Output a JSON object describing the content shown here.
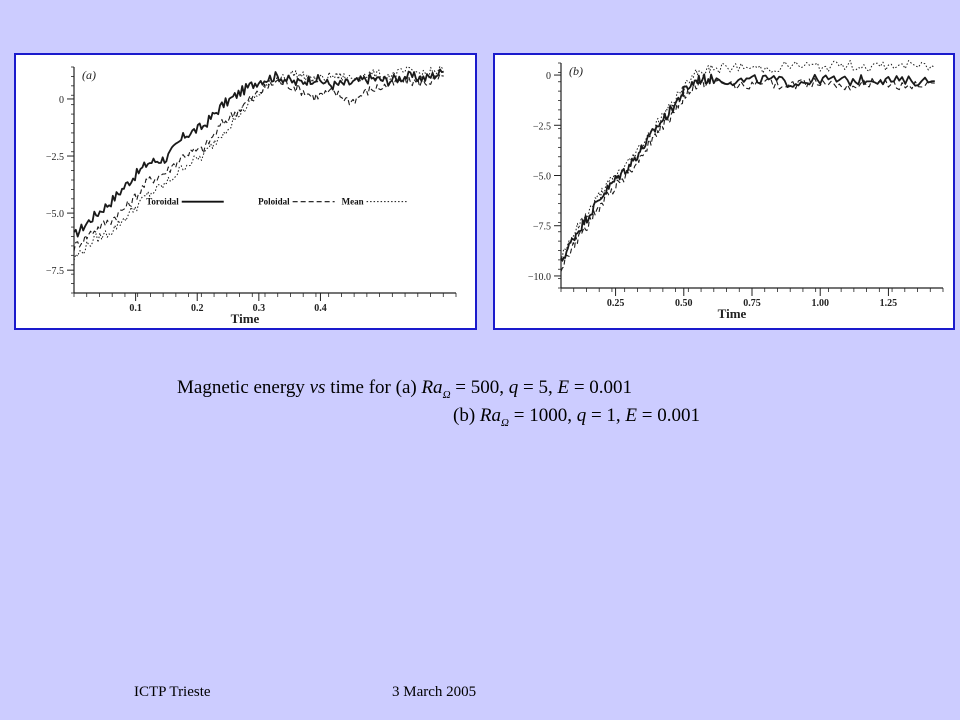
{
  "caption": {
    "line1_prefix": "Magnetic energy ",
    "line1_vs": "vs",
    "line1_mid": " time for (a) ",
    "ra_symbol": "Ra",
    "ra_sub": "Ω",
    "line1_vals": " = 500,   ",
    "q": "q",
    "line1_q": " = 5, ",
    "E": "E",
    "line1_e": " = 0.001",
    "line2_prefix": "(b) ",
    "line2_vals": " = 1000, ",
    "line2_q": " = 1, ",
    "line2_e": " = 0.001"
  },
  "footer": {
    "left": "ICTP Trieste",
    "right": "3 March 2005"
  },
  "chart_data": [
    {
      "type": "line",
      "panel_label": "(a)",
      "xlabel": "Time",
      "ylabel": "",
      "xlim": [
        0,
        0.62
      ],
      "ylim": [
        -8.5,
        1.4
      ],
      "xticks": [
        0.1,
        0.2,
        0.3,
        0.4
      ],
      "xtick_labels": [
        "0.1",
        "0.2",
        "0.3",
        "0.4"
      ],
      "yticks": [
        0,
        -2.5,
        -5.0,
        -7.5
      ],
      "ytick_labels": [
        "0",
        "−2.5",
        "−5.0",
        "−7.5"
      ],
      "legend": [
        "Toroidal",
        "Poloidal",
        "Mean"
      ],
      "legend_position": "lower-right",
      "series": [
        {
          "name": "Toroidal",
          "style": "solid",
          "x": [
            0,
            0.03,
            0.06,
            0.09,
            0.12,
            0.15,
            0.18,
            0.21,
            0.24,
            0.27,
            0.3,
            0.33,
            0.36,
            0.39,
            0.42,
            0.45,
            0.48,
            0.51,
            0.54,
            0.57,
            0.6
          ],
          "y": [
            -6.0,
            -5.2,
            -4.5,
            -3.6,
            -2.8,
            -2.6,
            -1.6,
            -1.2,
            -0.3,
            0.3,
            0.8,
            1.0,
            0.7,
            0.9,
            0.6,
            0.7,
            0.9,
            0.8,
            1.0,
            0.9,
            1.2
          ]
        },
        {
          "name": "Poloidal",
          "style": "dashed",
          "x": [
            0,
            0.03,
            0.06,
            0.09,
            0.12,
            0.15,
            0.18,
            0.21,
            0.24,
            0.27,
            0.3,
            0.33,
            0.36,
            0.39,
            0.42,
            0.45,
            0.48,
            0.51,
            0.54,
            0.57,
            0.6
          ],
          "y": [
            -6.5,
            -5.8,
            -5.3,
            -4.6,
            -3.6,
            -3.2,
            -2.4,
            -2.2,
            -1.1,
            -0.4,
            0.3,
            0.8,
            0.5,
            0.1,
            0.3,
            -0.1,
            0.4,
            0.6,
            0.8,
            0.7,
            1.0
          ]
        },
        {
          "name": "Mean",
          "style": "dotted",
          "x": [
            0,
            0.03,
            0.06,
            0.09,
            0.12,
            0.15,
            0.18,
            0.21,
            0.24,
            0.27,
            0.3,
            0.33,
            0.36,
            0.39,
            0.42,
            0.45,
            0.48,
            0.51,
            0.54,
            0.57,
            0.6
          ],
          "y": [
            -7.0,
            -6.2,
            -5.8,
            -5.0,
            -4.2,
            -3.7,
            -2.9,
            -2.5,
            -1.5,
            -0.6,
            0.2,
            1.0,
            1.1,
            0.8,
            1.0,
            0.9,
            1.1,
            1.0,
            1.2,
            1.1,
            1.3
          ]
        }
      ]
    },
    {
      "type": "line",
      "panel_label": "(b)",
      "xlabel": "Time",
      "ylabel": "",
      "xlim": [
        0.05,
        1.45
      ],
      "ylim": [
        -10.6,
        0.6
      ],
      "xticks": [
        0.25,
        0.5,
        0.75,
        1.0,
        1.25
      ],
      "xtick_labels": [
        "0.25",
        "0.50",
        "0.75",
        "1.00",
        "1.25"
      ],
      "yticks": [
        0,
        -2.5,
        -5.0,
        -7.5,
        -10.0
      ],
      "ytick_labels": [
        "0",
        "−2.5",
        "−5.0",
        "−7.5",
        "−10.0"
      ],
      "series": [
        {
          "name": "",
          "style": "solid",
          "x": [
            0.05,
            0.1,
            0.15,
            0.2,
            0.25,
            0.3,
            0.35,
            0.4,
            0.45,
            0.5,
            0.55,
            0.6,
            0.7,
            0.8,
            0.9,
            1.0,
            1.1,
            1.2,
            1.3,
            1.42
          ],
          "y": [
            -9.3,
            -8.0,
            -7.0,
            -6.0,
            -5.2,
            -4.5,
            -3.6,
            -2.6,
            -1.8,
            -0.8,
            -0.2,
            -0.2,
            -0.3,
            -0.2,
            -0.4,
            -0.2,
            -0.3,
            -0.2,
            -0.3,
            -0.3
          ]
        },
        {
          "name": "",
          "style": "dashed",
          "x": [
            0.05,
            0.1,
            0.15,
            0.2,
            0.25,
            0.3,
            0.35,
            0.4,
            0.45,
            0.5,
            0.55,
            0.6,
            0.7,
            0.8,
            0.9,
            1.0,
            1.1,
            1.2,
            1.3,
            1.42
          ],
          "y": [
            -9.6,
            -8.4,
            -7.4,
            -6.4,
            -5.5,
            -4.8,
            -3.9,
            -2.9,
            -2.1,
            -1.1,
            -0.5,
            -0.3,
            -0.5,
            -0.4,
            -0.5,
            -0.3,
            -0.5,
            -0.4,
            -0.5,
            -0.4
          ]
        },
        {
          "name": "",
          "style": "dotted",
          "x": [
            0.05,
            0.1,
            0.15,
            0.2,
            0.25,
            0.3,
            0.35,
            0.4,
            0.45,
            0.5,
            0.55,
            0.6,
            0.7,
            0.8,
            0.9,
            1.0,
            1.1,
            1.2,
            1.3,
            1.42
          ],
          "y": [
            -9.0,
            -7.8,
            -6.8,
            -5.8,
            -5.0,
            -4.3,
            -3.4,
            -2.4,
            -1.6,
            -0.6,
            0.1,
            0.3,
            0.4,
            0.3,
            0.5,
            0.4,
            0.5,
            0.4,
            0.5,
            0.4
          ]
        }
      ]
    }
  ]
}
